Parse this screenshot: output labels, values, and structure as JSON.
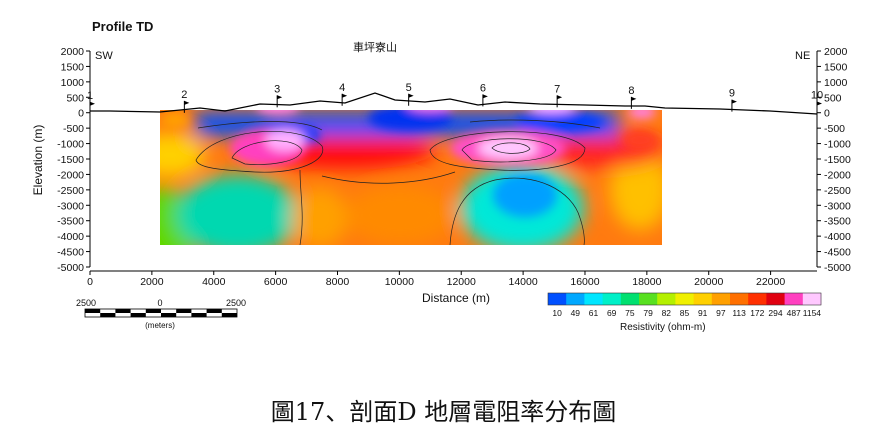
{
  "figure": {
    "title": "Profile TD",
    "left_end": "SW",
    "right_end": "NE",
    "mountain_label": "車坪寮山",
    "caption": "圖17、剖面D 地層電阻率分布圖"
  },
  "chart_data": {
    "type": "heatmap",
    "title": "Profile TD",
    "xlabel": "Distance (m)",
    "ylabel": "Elevation (m)",
    "xlim": [
      0,
      23500
    ],
    "ylim": [
      -5000,
      2000
    ],
    "x_ticks": [
      "0",
      "2000",
      "4000",
      "6000",
      "8000",
      "10000",
      "12000",
      "14000",
      "16000",
      "18000",
      "20000",
      "22000"
    ],
    "y_ticks": [
      "2000",
      "1500",
      "1000",
      "500",
      "0",
      "-500",
      "-1000",
      "-1500",
      "-2000",
      "-2500",
      "-3000",
      "-3500",
      "-4000",
      "-4500",
      "-5000"
    ],
    "stations": [
      {
        "label": "1",
        "x": 0,
        "z": 30
      },
      {
        "label": "2",
        "x": 3050,
        "z": 60
      },
      {
        "label": "3",
        "x": 6050,
        "z": 240
      },
      {
        "label": "4",
        "x": 8150,
        "z": 290
      },
      {
        "label": "5",
        "x": 10300,
        "z": 290
      },
      {
        "label": "6",
        "x": 12700,
        "z": 270
      },
      {
        "label": "7",
        "x": 15100,
        "z": 240
      },
      {
        "label": "8",
        "x": 17500,
        "z": 190
      },
      {
        "label": "9",
        "x": 20750,
        "z": 100
      },
      {
        "label": "10",
        "x": 23500,
        "z": 40
      }
    ],
    "colorbar": {
      "label": "Resistivity (ohm-m)",
      "ticks": [
        "10",
        "49",
        "61",
        "69",
        "75",
        "79",
        "82",
        "85",
        "91",
        "97",
        "113",
        "172",
        "294",
        "487",
        "1154"
      ],
      "colors": [
        "#0050ff",
        "#00a8ff",
        "#00e6ff",
        "#00f0c8",
        "#00e070",
        "#58e020",
        "#b4f000",
        "#f0f000",
        "#ffd000",
        "#ffa000",
        "#ff7000",
        "#ff3000",
        "#e00010",
        "#ff40c0",
        "#ffc8ff"
      ]
    }
  },
  "scale_bar": {
    "labels": [
      "2500",
      "0",
      "2500"
    ],
    "unit": "(meters)"
  }
}
